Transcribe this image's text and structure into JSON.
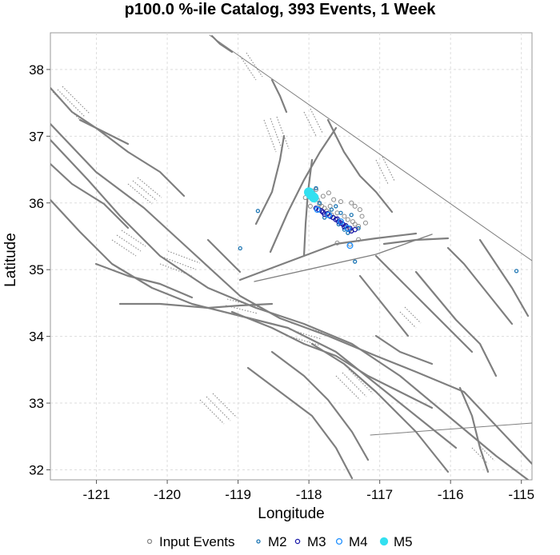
{
  "chart_data": {
    "type": "scatter",
    "title": "p100.0 %-ile Catalog, 393 Events, 1 Week",
    "xlabel": "Longitude",
    "ylabel": "Latitude",
    "xlim": [
      -121.65,
      -114.85
    ],
    "ylim": [
      31.85,
      38.55
    ],
    "xticks": [
      "-121",
      "-120",
      "-119",
      "-118",
      "-117",
      "-116",
      "-115"
    ],
    "yticks": [
      "32",
      "33",
      "34",
      "35",
      "36",
      "37",
      "38"
    ],
    "grid": true,
    "legend_position": "bottom",
    "series": [
      {
        "name": "Input Events",
        "color": "#888888",
        "points": [
          [
            -117.95,
            36.18
          ],
          [
            -117.92,
            36.12
          ],
          [
            -117.88,
            36.05
          ],
          [
            -117.85,
            35.98
          ],
          [
            -117.82,
            35.95
          ],
          [
            -117.78,
            35.92
          ],
          [
            -117.75,
            35.88
          ],
          [
            -117.72,
            35.85
          ],
          [
            -117.68,
            35.82
          ],
          [
            -117.65,
            35.78
          ],
          [
            -117.62,
            35.75
          ],
          [
            -117.58,
            35.72
          ],
          [
            -117.55,
            35.7
          ],
          [
            -117.52,
            35.68
          ],
          [
            -117.48,
            35.65
          ],
          [
            -117.45,
            35.62
          ],
          [
            -117.42,
            35.6
          ],
          [
            -117.4,
            35.58
          ],
          [
            -117.7,
            35.95
          ],
          [
            -117.6,
            35.85
          ],
          [
            -117.5,
            35.8
          ],
          [
            -117.45,
            35.75
          ],
          [
            -117.38,
            35.72
          ],
          [
            -117.35,
            35.68
          ],
          [
            -117.3,
            35.65
          ],
          [
            -117.28,
            35.9
          ],
          [
            -117.35,
            35.95
          ],
          [
            -117.4,
            36.0
          ],
          [
            -117.55,
            36.02
          ],
          [
            -117.65,
            36.05
          ],
          [
            -117.8,
            36.1
          ],
          [
            -117.9,
            36.2
          ],
          [
            -117.72,
            36.15
          ],
          [
            -117.3,
            35.45
          ],
          [
            -117.6,
            35.4
          ],
          [
            -117.42,
            35.38
          ],
          [
            -117.25,
            35.8
          ],
          [
            -117.2,
            35.7
          ],
          [
            -118.05,
            36.08
          ],
          [
            -117.98,
            35.95
          ]
        ]
      },
      {
        "name": "M2",
        "color": "#1f77b4",
        "points": [
          [
            -118.72,
            35.88
          ],
          [
            -118.97,
            35.32
          ],
          [
            -117.35,
            35.12
          ],
          [
            -115.07,
            34.98
          ],
          [
            -117.9,
            36.22
          ],
          [
            -117.62,
            35.95
          ],
          [
            -117.5,
            35.6
          ],
          [
            -117.78,
            35.78
          ],
          [
            -117.4,
            35.82
          ],
          [
            -117.85,
            36.0
          ],
          [
            -117.58,
            35.68
          ],
          [
            -117.68,
            35.9
          ],
          [
            -117.45,
            35.55
          ],
          [
            -117.3,
            35.62
          ],
          [
            -117.92,
            36.05
          ],
          [
            -117.55,
            35.85
          ]
        ]
      },
      {
        "name": "M3",
        "color": "#1a1aa8",
        "points": [
          [
            -117.9,
            35.92
          ],
          [
            -117.8,
            35.86
          ],
          [
            -117.7,
            35.8
          ],
          [
            -117.62,
            35.75
          ],
          [
            -117.55,
            35.7
          ],
          [
            -117.48,
            35.66
          ],
          [
            -117.42,
            35.62
          ],
          [
            -117.78,
            35.83
          ],
          [
            -117.66,
            35.78
          ],
          [
            -117.58,
            35.72
          ],
          [
            -117.52,
            35.68
          ],
          [
            -117.95,
            36.15
          ],
          [
            -117.98,
            36.1
          ],
          [
            -117.86,
            35.9
          ],
          [
            -117.74,
            35.84
          ],
          [
            -117.6,
            35.76
          ],
          [
            -117.4,
            35.58
          ],
          [
            -117.5,
            35.64
          ],
          [
            -117.82,
            35.88
          ],
          [
            -117.35,
            35.6
          ]
        ]
      },
      {
        "name": "M4",
        "color": "#1e90ff",
        "points": [
          [
            -117.96,
            36.14
          ],
          [
            -117.72,
            35.82
          ],
          [
            -117.55,
            35.72
          ],
          [
            -117.45,
            35.62
          ],
          [
            -117.42,
            35.36
          ],
          [
            -117.88,
            35.9
          ]
        ]
      },
      {
        "name": "M5",
        "color": "#33e0f0",
        "points": [
          [
            -117.97,
            36.12
          ],
          [
            -117.93,
            36.08
          ],
          [
            -118.0,
            36.16
          ]
        ]
      }
    ]
  }
}
